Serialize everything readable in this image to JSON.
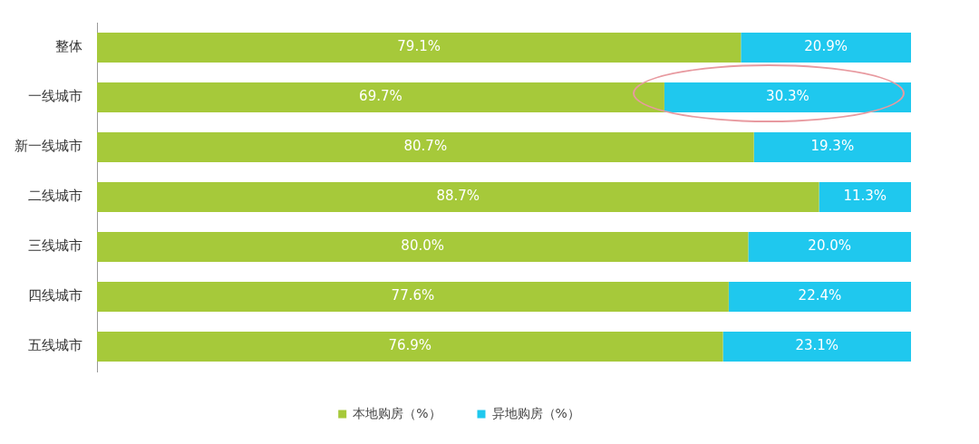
{
  "chart_data": {
    "type": "bar",
    "orientation": "horizontal",
    "stacked": true,
    "categories": [
      "整体",
      "一线城市",
      "新一线城市",
      "二线城市",
      "三线城市",
      "四线城市",
      "五线城市"
    ],
    "series": [
      {
        "name": "本地购房（%）",
        "color": "#a6c93a",
        "values": [
          79.1,
          69.7,
          80.7,
          88.7,
          80.0,
          77.6,
          76.9
        ],
        "value_labels": [
          "79.1%",
          "69.7%",
          "80.7%",
          "88.7%",
          "80.0%",
          "77.6%",
          "76.9%"
        ]
      },
      {
        "name": "异地购房（%）",
        "color": "#1fc8ee",
        "values": [
          20.9,
          30.3,
          19.3,
          11.3,
          20.0,
          22.4,
          23.1
        ],
        "value_labels": [
          "20.9%",
          "30.3%",
          "19.3%",
          "11.3%",
          "20.0%",
          "22.4%",
          "23.1%"
        ]
      }
    ],
    "xlim": [
      0,
      100
    ],
    "tick_labels": "y",
    "legend": "bottom"
  }
}
